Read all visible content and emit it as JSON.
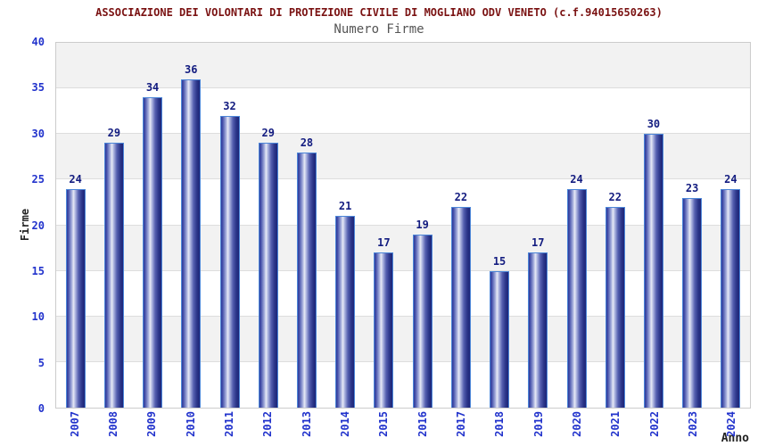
{
  "header": {
    "title": "ASSOCIAZIONE DEI VOLONTARI DI PROTEZIONE CIVILE DI MOGLIANO ODV VENETO (c.f.94015650263)",
    "subtitle": "Numero Firme"
  },
  "chart_data": {
    "type": "bar",
    "title": "ASSOCIAZIONE DEI VOLONTARI DI PROTEZIONE CIVILE DI MOGLIANO ODV VENETO (c.f.94015650263)",
    "subtitle": "Numero Firme",
    "xlabel": "Anno",
    "ylabel": "Firme",
    "categories": [
      "2007",
      "2008",
      "2009",
      "2010",
      "2011",
      "2012",
      "2013",
      "2014",
      "2015",
      "2016",
      "2017",
      "2018",
      "2019",
      "2020",
      "2021",
      "2022",
      "2023",
      "2024"
    ],
    "values": [
      24,
      29,
      34,
      36,
      32,
      29,
      28,
      21,
      17,
      19,
      22,
      15,
      17,
      24,
      22,
      30,
      23,
      24
    ],
    "ylim": [
      0,
      40
    ],
    "ytick_step": 5,
    "grid": true,
    "legend_position": "none",
    "band_pattern": "alternating gray/white horizontal bands, gray at top"
  },
  "colors": {
    "title_text": "#7a1212",
    "subtitle_text": "#555555",
    "axis_tick_text": "#2233cc",
    "value_label_text": "#131c80",
    "axis_title_text": "#222222",
    "bar_dark": "#1d2678",
    "bar_light": "#e8eaf6",
    "bar_border": "#4c86d8",
    "band_gray": "#f2f2f2",
    "plot_border": "#cccccc",
    "gridline": "#dddddd"
  }
}
